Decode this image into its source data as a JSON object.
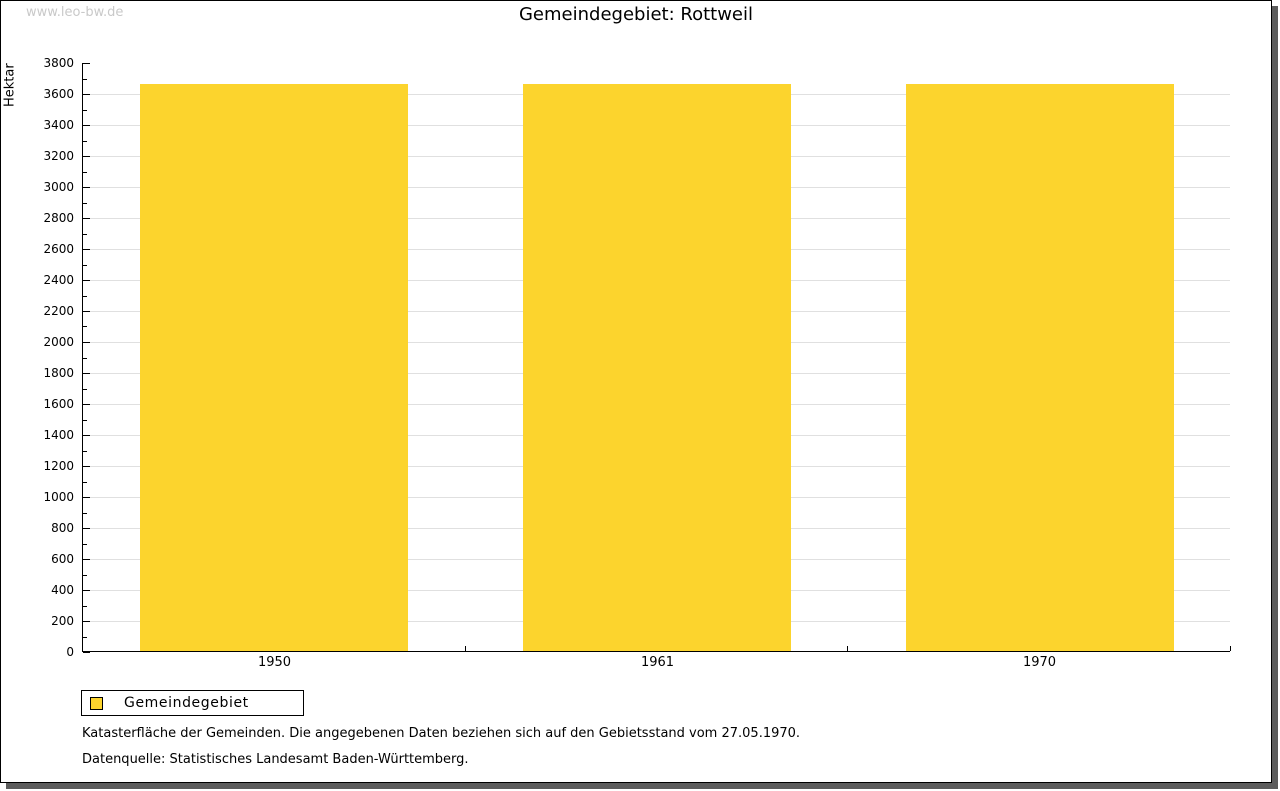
{
  "watermark": "www.leo-bw.de",
  "title": "Gemeindegebiet: Rottweil",
  "y_axis_label": "Hektar",
  "legend": {
    "label": "Gemeindegebiet"
  },
  "notes": {
    "line1": "Katasterfläche der Gemeinden. Die angegebenen Daten beziehen sich auf den Gebietsstand vom 27.05.1970.",
    "line2": "Datenquelle: Statistisches Landesamt Baden-Württemberg."
  },
  "colors": {
    "bar": "#fcd42d",
    "grid": "#e0e0e0",
    "axis": "#000000",
    "watermark": "#c9c9c9",
    "frame_shadow": "#5c5c5c"
  },
  "chart_data": {
    "type": "bar",
    "title": "Gemeindegebiet: Rottweil",
    "categories": [
      "1950",
      "1961",
      "1970"
    ],
    "series": [
      {
        "name": "Gemeindegebiet",
        "values": [
          3660,
          3660,
          3660
        ]
      }
    ],
    "xlabel": "",
    "ylabel": "Hektar",
    "ylim": [
      0,
      3800
    ],
    "ytick_major": 200,
    "ytick_minor": 100,
    "grid": true,
    "gridlines": "horizontal-major",
    "bar_width_fraction": 0.7,
    "legend_position": "bottom-left"
  }
}
